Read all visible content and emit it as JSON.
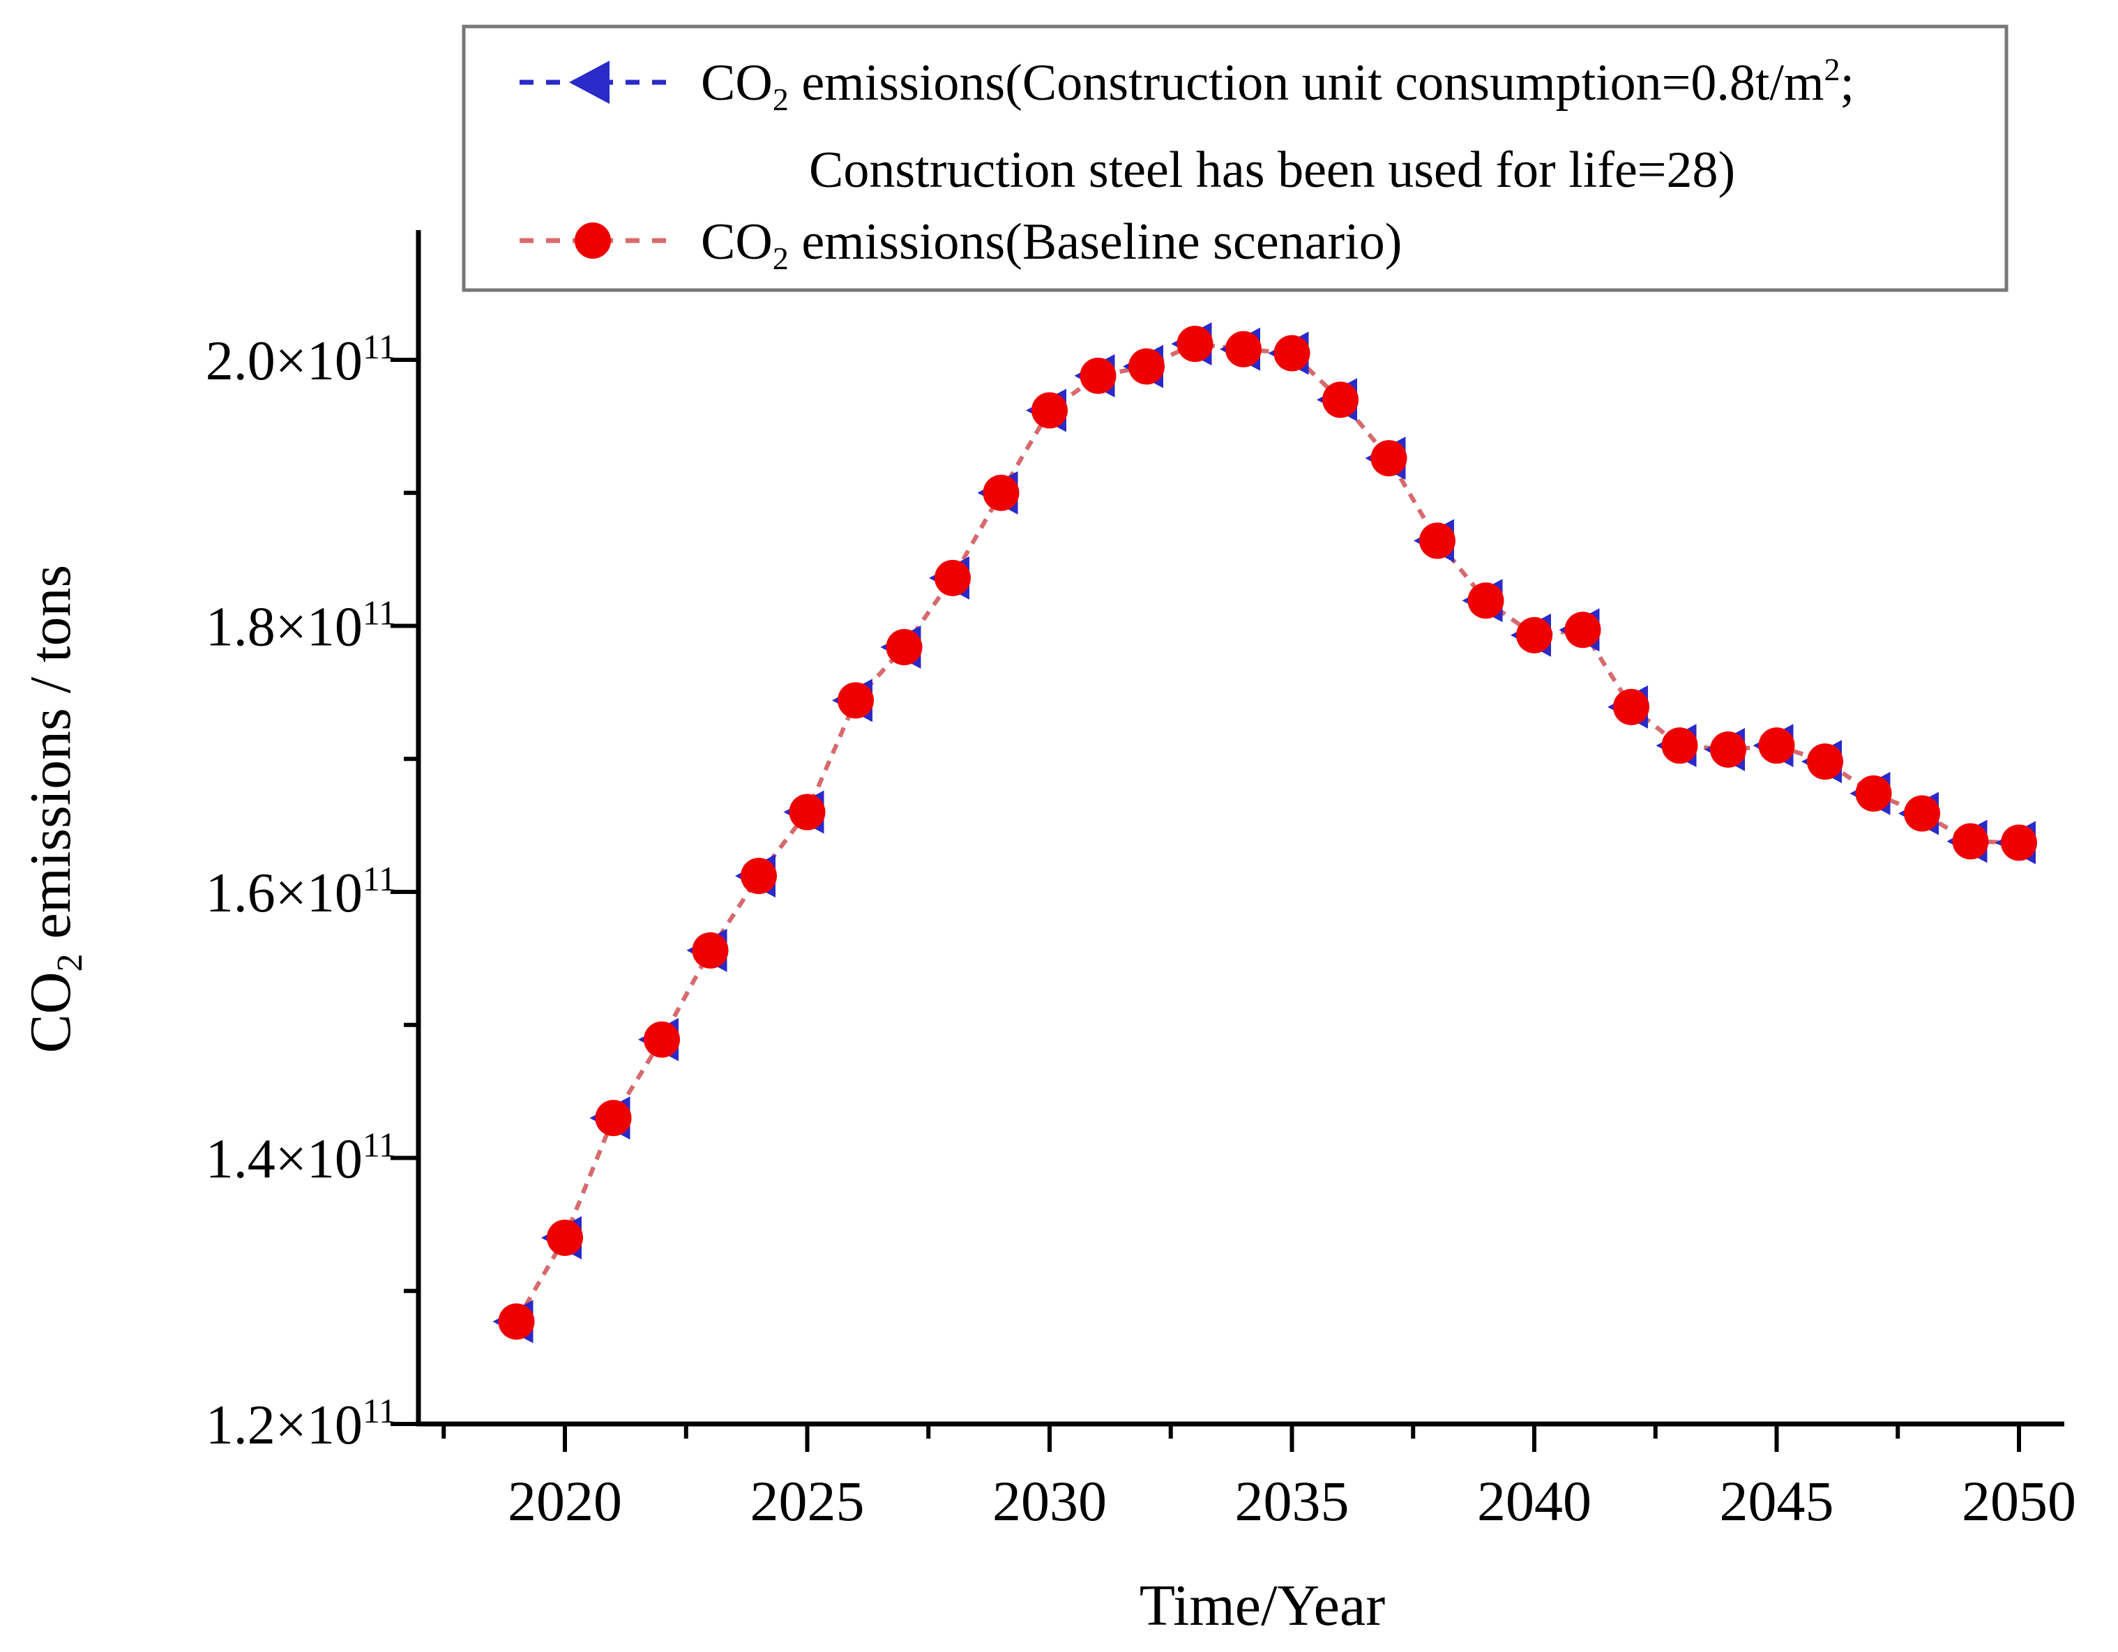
{
  "chart_data": {
    "type": "line",
    "title": "",
    "xlabel": "Time/Year",
    "ylabel_segments": [
      {
        "t": "CO"
      },
      {
        "sub": "2"
      },
      {
        "t": " emissions / tons"
      }
    ],
    "y_unit": "tons (values listed as multiples of 10^11)",
    "xlim": [
      2017,
      2051
    ],
    "ylim_e11": [
      1.2,
      2.05
    ],
    "grid": "off",
    "legend_position": "top-inside-box",
    "x": [
      2019,
      2020,
      2021,
      2022,
      2023,
      2024,
      2025,
      2026,
      2027,
      2028,
      2029,
      2030,
      2031,
      2032,
      2033,
      2034,
      2035,
      2036,
      2037,
      2038,
      2039,
      2040,
      2041,
      2042,
      2043,
      2044,
      2045,
      2046,
      2047,
      2048,
      2049,
      2050
    ],
    "series": [
      {
        "name": "CO2 emissions(Construction unit consumption=0.8t/m2; Construction steel has been used for life=28)",
        "marker": "triangle-left",
        "marker_color": "#2a2ac8",
        "line_color": "#2a2ac8",
        "values_e11": [
          1.277,
          1.34,
          1.43,
          1.489,
          1.556,
          1.612,
          1.66,
          1.744,
          1.784,
          1.836,
          1.9,
          1.962,
          1.988,
          1.995,
          2.012,
          2.008,
          2.005,
          1.97,
          1.926,
          1.864,
          1.819,
          1.793,
          1.797,
          1.739,
          1.71,
          1.707,
          1.71,
          1.698,
          1.674,
          1.659,
          1.638,
          1.637
        ]
      },
      {
        "name": "CO2 emissions(Baseline scenario)",
        "marker": "circle",
        "marker_color": "#ee0000",
        "line_color": "#d96a6a",
        "values_e11": [
          1.277,
          1.34,
          1.43,
          1.489,
          1.556,
          1.612,
          1.66,
          1.744,
          1.784,
          1.836,
          1.9,
          1.962,
          1.988,
          1.995,
          2.012,
          2.008,
          2.005,
          1.97,
          1.926,
          1.864,
          1.819,
          1.793,
          1.797,
          1.739,
          1.71,
          1.707,
          1.71,
          1.698,
          1.674,
          1.659,
          1.638,
          1.637
        ]
      }
    ],
    "x_ticks": [
      {
        "value": 2020,
        "label": "2020"
      },
      {
        "value": 2025,
        "label": "2025"
      },
      {
        "value": 2030,
        "label": "2030"
      },
      {
        "value": 2035,
        "label": "2035"
      },
      {
        "value": 2040,
        "label": "2040"
      },
      {
        "value": 2045,
        "label": "2045"
      },
      {
        "value": 2050,
        "label": "2050"
      }
    ],
    "x_minor_ticks": [
      2017.5,
      2022.5,
      2027.5,
      2032.5,
      2037.5,
      2042.5,
      2047.5
    ],
    "y_ticks": [
      {
        "value_e11": 1.2,
        "segments": [
          {
            "t": "1.2×10"
          },
          {
            "sup": "11"
          }
        ]
      },
      {
        "value_e11": 1.4,
        "segments": [
          {
            "t": "1.4×10"
          },
          {
            "sup": "11"
          }
        ]
      },
      {
        "value_e11": 1.6,
        "segments": [
          {
            "t": "1.6×10"
          },
          {
            "sup": "11"
          }
        ]
      },
      {
        "value_e11": 1.8,
        "segments": [
          {
            "t": "1.8×10"
          },
          {
            "sup": "11"
          }
        ]
      },
      {
        "value_e11": 2.0,
        "segments": [
          {
            "t": "2.0×10"
          },
          {
            "sup": "11"
          }
        ]
      }
    ],
    "y_minor_ticks": [
      1.3,
      1.5,
      1.7,
      1.9
    ]
  },
  "legend": {
    "border_color": "#777777",
    "entries": [
      {
        "marker": "triangle-left",
        "marker_color": "#2a2ac8",
        "line_color": "#2a2ac8",
        "lines": [
          [
            {
              "t": "CO"
            },
            {
              "sub": "2"
            },
            {
              "t": " emissions(Construction  unit consumption=0.8t/m"
            },
            {
              "sup": "2"
            },
            {
              "t": ";"
            }
          ],
          [
            {
              "t": "Construction  steel  has  been  used  for  life=28)"
            }
          ]
        ]
      },
      {
        "marker": "circle",
        "marker_color": "#ee0000",
        "line_color": "#d96a6a",
        "lines": [
          [
            {
              "t": "CO"
            },
            {
              "sub": "2"
            },
            {
              "t": " emissions(Baseline  scenario)"
            }
          ]
        ]
      }
    ]
  },
  "colors": {
    "axis": "#000000",
    "background": "#ffffff",
    "red_series": "#ee0000",
    "red_line": "#d96a6a",
    "blue_series": "#2a2ac8"
  }
}
